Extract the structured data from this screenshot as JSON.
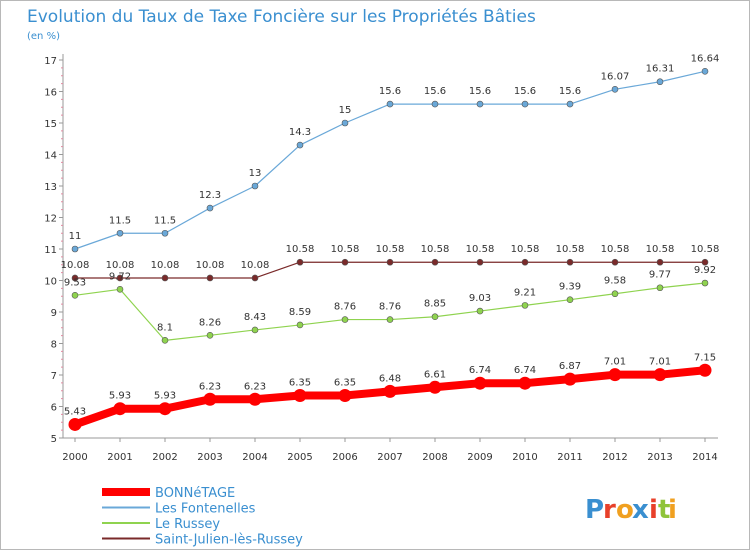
{
  "chart_data": {
    "type": "line",
    "title": "Evolution du Taux de Taxe Foncière sur les Propriétés Bâties",
    "subtitle": "(en %)",
    "x": [
      "2000",
      "2001",
      "2002",
      "2003",
      "2004",
      "2005",
      "2006",
      "2007",
      "2008",
      "2009",
      "2010",
      "2011",
      "2012",
      "2013",
      "2014"
    ],
    "ylim": [
      5,
      17
    ],
    "yticks": [
      5,
      6,
      7,
      8,
      9,
      10,
      11,
      12,
      13,
      14,
      15,
      16,
      17
    ],
    "grid": false,
    "legend_position": "bottom-left",
    "series": [
      {
        "name": "BONNéTAGE",
        "color": "#ff0000",
        "values": [
          5.43,
          5.93,
          5.93,
          6.23,
          6.23,
          6.35,
          6.35,
          6.48,
          6.61,
          6.74,
          6.74,
          6.87,
          7.01,
          7.01,
          7.15
        ],
        "labels": [
          "5.43",
          "5.93",
          "5.93",
          "6.23",
          "6.23",
          "6.35",
          "6.35",
          "6.48",
          "6.61",
          "6.74",
          "6.74",
          "6.87",
          "7.01",
          "7.01",
          "7.15"
        ]
      },
      {
        "name": "Les Fontenelles",
        "color": "#6aa8d8",
        "values": [
          11,
          11.5,
          11.5,
          12.3,
          13,
          14.3,
          15,
          15.6,
          15.6,
          15.6,
          15.6,
          15.6,
          16.07,
          16.31,
          16.64
        ],
        "labels": [
          "11",
          "11.5",
          "11.5",
          "12.3",
          "13",
          "14.3",
          "15",
          "15.6",
          "15.6",
          "15.6",
          "15.6",
          "15.6",
          "16.07",
          "16.31",
          "16.64"
        ]
      },
      {
        "name": "Le Russey",
        "color": "#8fd34f",
        "values": [
          9.53,
          9.72,
          8.1,
          8.26,
          8.43,
          8.59,
          8.76,
          8.76,
          8.85,
          9.03,
          9.21,
          9.39,
          9.58,
          9.77,
          9.92
        ],
        "labels": [
          "9.53",
          "9.72",
          "8.1",
          "8.26",
          "8.43",
          "8.59",
          "8.76",
          "8.76",
          "8.85",
          "9.03",
          "9.21",
          "9.39",
          "9.58",
          "9.77",
          "9.92"
        ]
      },
      {
        "name": "Saint-Julien-lès-Russey",
        "color": "#7a2a2a",
        "values": [
          10.08,
          10.08,
          10.08,
          10.08,
          10.08,
          10.58,
          10.58,
          10.58,
          10.58,
          10.58,
          10.58,
          10.58,
          10.58,
          10.58,
          10.58
        ],
        "labels": [
          "10.08",
          "10.08",
          "10.08",
          "10.08",
          "10.08",
          "10.58",
          "10.58",
          "10.58",
          "10.58",
          "10.58",
          "10.58",
          "10.58",
          "10.58",
          "10.58",
          "10.58"
        ]
      }
    ]
  },
  "logo": {
    "text": "Proxiti",
    "colors": [
      "#3a8fd0",
      "#e8402a",
      "#f0a020",
      "#3a8fd0",
      "#e8402a",
      "#8fc43a",
      "#f0a020"
    ]
  }
}
